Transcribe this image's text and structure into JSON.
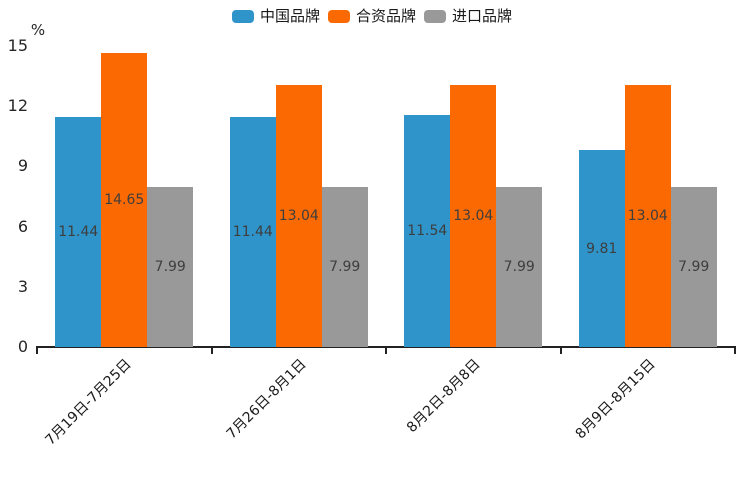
{
  "chart_data": {
    "type": "bar",
    "title": "",
    "categories": [
      "7月19日-7月25日",
      "7月26日-8月1日",
      "8月2日-8月8日",
      "8月9日-8月15日"
    ],
    "series": [
      {
        "name": "中国品牌",
        "color": "#2F94CA",
        "values": [
          11.44,
          11.44,
          11.54,
          9.81
        ]
      },
      {
        "name": "合资品牌",
        "color": "#FB6A02",
        "values": [
          14.65,
          13.04,
          13.04,
          13.04
        ]
      },
      {
        "name": "进口品牌",
        "color": "#999999",
        "values": [
          7.99,
          7.99,
          7.99,
          7.99
        ]
      }
    ],
    "y_axis": {
      "unit": "%",
      "min": 0,
      "max": 15,
      "ticks": [
        0,
        3,
        6,
        9,
        12,
        15
      ]
    },
    "value_labels_shown": true,
    "legend_position": "top",
    "grid": false,
    "x_label_rotation_deg": 45,
    "axis_color": "#222222"
  }
}
